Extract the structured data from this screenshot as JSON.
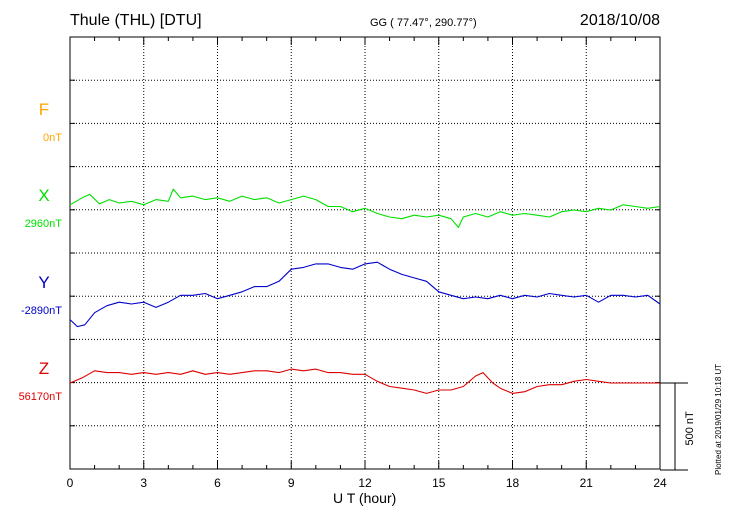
{
  "header": {
    "title": "Thule (THL)  [DTU]",
    "coords": "GG ( 77.47°, 290.77°)",
    "date": "2018/10/08"
  },
  "footer": {
    "plotted": "Plotted at 2019/01/29 10:18 UT"
  },
  "colors": {
    "F": "#ffa500",
    "X": "#00e000",
    "Y": "#0000cc",
    "Z": "#dd0000",
    "grid": "#000000"
  },
  "chart_data": {
    "type": "line",
    "title": "Thule (THL)  [DTU]",
    "xlabel": "U T (hour)",
    "xlim": [
      0,
      24
    ],
    "x_ticks": [
      0,
      3,
      6,
      9,
      12,
      15,
      18,
      21,
      24
    ],
    "x_tick_labels": [
      "0",
      "3",
      "6",
      "9",
      "12",
      "15",
      "18",
      "21",
      "24"
    ],
    "scale_bar": {
      "label": "500 nT",
      "nT": 500
    },
    "grid": true,
    "series": [
      {
        "name": "F",
        "baseline_label": "0nT",
        "color": "#ffa500",
        "baseline_nT": 0,
        "x": [],
        "values": []
      },
      {
        "name": "X",
        "baseline_label": "2960nT",
        "color": "#00e000",
        "baseline_nT": 2960,
        "x": [
          0,
          0.5,
          0.8,
          1.2,
          1.6,
          2.0,
          2.5,
          3.0,
          3.5,
          4.0,
          4.2,
          4.5,
          5.0,
          5.5,
          6.0,
          6.5,
          7.0,
          7.5,
          8.0,
          8.5,
          9.0,
          9.5,
          10.0,
          10.5,
          11.0,
          11.5,
          12.0,
          12.5,
          13.0,
          13.5,
          14.0,
          14.5,
          15.0,
          15.5,
          15.8,
          16.0,
          16.5,
          17.0,
          17.5,
          18.0,
          18.5,
          19.0,
          19.5,
          20.0,
          20.5,
          21.0,
          21.5,
          22.0,
          22.5,
          23.0,
          23.5,
          24.0
        ],
        "values": [
          2990,
          3030,
          3050,
          2995,
          3020,
          3000,
          3010,
          2990,
          3020,
          3010,
          3080,
          3030,
          3040,
          3020,
          3030,
          3010,
          3040,
          3020,
          3030,
          3000,
          3020,
          3040,
          3020,
          2980,
          2980,
          2950,
          2970,
          2940,
          2920,
          2910,
          2930,
          2920,
          2930,
          2910,
          2860,
          2920,
          2940,
          2920,
          2950,
          2930,
          2940,
          2930,
          2920,
          2950,
          2960,
          2950,
          2970,
          2960,
          2990,
          2980,
          2970,
          2980
        ]
      },
      {
        "name": "Y",
        "baseline_label": "-2890nT",
        "color": "#0000cc",
        "baseline_nT": -2890,
        "x": [
          0,
          0.3,
          0.6,
          1.0,
          1.5,
          2.0,
          2.5,
          3.0,
          3.5,
          4.0,
          4.5,
          5.0,
          5.5,
          6.0,
          6.5,
          7.0,
          7.5,
          8.0,
          8.5,
          9.0,
          9.5,
          10.0,
          10.5,
          11.0,
          11.5,
          12.0,
          12.5,
          13.0,
          13.5,
          14.0,
          14.5,
          15.0,
          15.5,
          16.0,
          16.5,
          17.0,
          17.5,
          18.0,
          18.5,
          19.0,
          19.5,
          20.0,
          20.5,
          21.0,
          21.5,
          22.0,
          22.5,
          23.0,
          23.5,
          24.0
        ],
        "values": [
          -3020,
          -3060,
          -3050,
          -2980,
          -2940,
          -2920,
          -2930,
          -2920,
          -2950,
          -2920,
          -2880,
          -2880,
          -2870,
          -2900,
          -2880,
          -2860,
          -2830,
          -2830,
          -2800,
          -2730,
          -2720,
          -2700,
          -2700,
          -2720,
          -2730,
          -2700,
          -2690,
          -2730,
          -2760,
          -2780,
          -2800,
          -2860,
          -2880,
          -2900,
          -2890,
          -2900,
          -2880,
          -2900,
          -2880,
          -2890,
          -2870,
          -2880,
          -2890,
          -2880,
          -2920,
          -2880,
          -2880,
          -2890,
          -2880,
          -2930
        ]
      },
      {
        "name": "Z",
        "baseline_label": "56170nT",
        "color": "#dd0000",
        "baseline_nT": 56170,
        "x": [
          0,
          0.5,
          1.0,
          1.5,
          2.0,
          2.5,
          3.0,
          3.5,
          4.0,
          4.5,
          5.0,
          5.5,
          6.0,
          6.5,
          7.0,
          7.5,
          8.0,
          8.5,
          9.0,
          9.5,
          10.0,
          10.5,
          11.0,
          11.5,
          12.0,
          12.5,
          13.0,
          13.5,
          14.0,
          14.5,
          15.0,
          15.5,
          16.0,
          16.5,
          16.8,
          17.2,
          17.5,
          18.0,
          18.5,
          19.0,
          19.5,
          20.0,
          20.5,
          21.0,
          21.5,
          22.0,
          22.5,
          23.0,
          23.5,
          24.0
        ],
        "values": [
          56170,
          56200,
          56240,
          56230,
          56230,
          56220,
          56230,
          56220,
          56230,
          56220,
          56240,
          56220,
          56230,
          56220,
          56230,
          56240,
          56240,
          56230,
          56250,
          56240,
          56250,
          56230,
          56230,
          56220,
          56220,
          56180,
          56150,
          56140,
          56130,
          56110,
          56130,
          56130,
          56150,
          56210,
          56230,
          56170,
          56140,
          56110,
          56120,
          56150,
          56160,
          56160,
          56180,
          56190,
          56180,
          56170,
          56170,
          56170,
          56170,
          56170
        ]
      }
    ]
  }
}
